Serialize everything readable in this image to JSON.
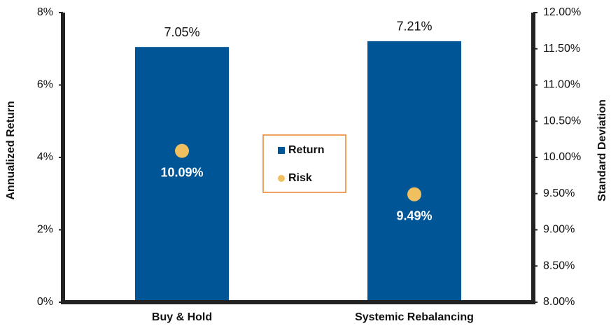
{
  "chart_data": {
    "type": "bar",
    "categories": [
      "Buy & Hold",
      "Systemic Rebalancing"
    ],
    "series": [
      {
        "name": "Return",
        "color": "#005596",
        "values": [
          7.05,
          7.21
        ],
        "value_labels": [
          "7.05%",
          "7.21%"
        ]
      },
      {
        "name": "Risk",
        "type": "scatter",
        "axis": "y2",
        "color": "#f0c060",
        "values": [
          10.09,
          9.49
        ],
        "value_labels": [
          "10.09%",
          "9.49%"
        ]
      }
    ],
    "ylabel": "Annualized Return",
    "y2label": "Standard Deviation",
    "ylim": [
      0,
      8
    ],
    "yticks": [
      {
        "value": 0,
        "label": "0%"
      },
      {
        "value": 2,
        "label": "2%"
      },
      {
        "value": 4,
        "label": "4%"
      },
      {
        "value": 6,
        "label": "6%"
      },
      {
        "value": 8,
        "label": "8%"
      }
    ],
    "y2lim": [
      8,
      12
    ],
    "y2ticks": [
      {
        "value": 8,
        "label": "8.00%"
      },
      {
        "value": 8.5,
        "label": "8.50%"
      },
      {
        "value": 9,
        "label": "9.00%"
      },
      {
        "value": 9.5,
        "label": "9.50%"
      },
      {
        "value": 10,
        "label": "10.00%"
      },
      {
        "value": 10.5,
        "label": "10.50%"
      },
      {
        "value": 11,
        "label": "11.00%"
      },
      {
        "value": 11.5,
        "label": "11.50%"
      },
      {
        "value": 12,
        "label": "12.00%"
      }
    ],
    "grid": false,
    "legend": "center"
  }
}
